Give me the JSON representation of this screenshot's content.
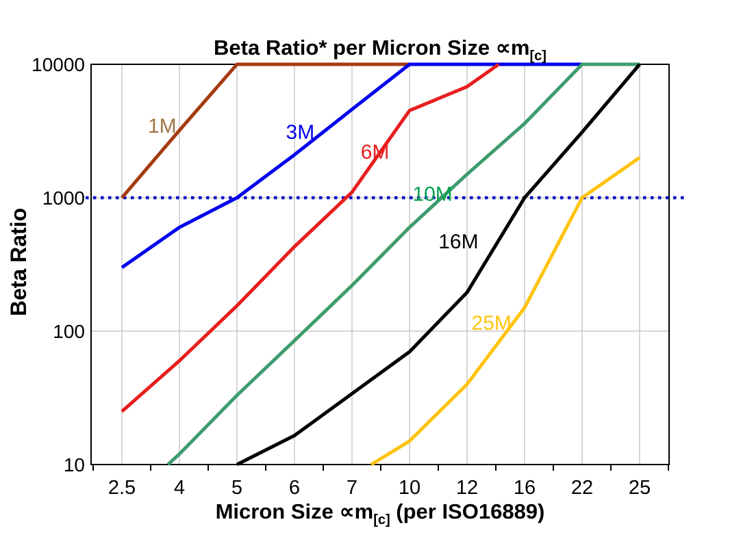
{
  "title": {
    "text": "Beta Ratio* per Micron Size ",
    "symbol": "∝m",
    "subscript": "[c]"
  },
  "x_axis": {
    "title_prefix": "Micron Size ",
    "title_symbol": "∝m",
    "title_subscript": "[c]",
    "title_suffix": " (per ISO16889)",
    "ticks": [
      {
        "label": "2.5",
        "value": 2.5
      },
      {
        "label": "4",
        "value": 4
      },
      {
        "label": "5",
        "value": 5
      },
      {
        "label": "6",
        "value": 6
      },
      {
        "label": "7",
        "value": 7
      },
      {
        "label": "10",
        "value": 10
      },
      {
        "label": "12",
        "value": 12
      },
      {
        "label": "16",
        "value": 16
      },
      {
        "label": "22",
        "value": 22
      },
      {
        "label": "25",
        "value": 25
      }
    ]
  },
  "y_axis": {
    "title": "Beta Ratio",
    "scale": "log",
    "ticks": [
      {
        "label": "10",
        "value": 10
      },
      {
        "label": "100",
        "value": 100
      },
      {
        "label": "1000",
        "value": 1000
      },
      {
        "label": "10000",
        "value": 10000
      }
    ]
  },
  "reference_line": {
    "beta": 1000,
    "color": "#0d0dcc",
    "style": "dotted"
  },
  "colors": {
    "frame": "#000000",
    "gridline": "#c9c9c9",
    "background": "#ffffff"
  },
  "chart_data": {
    "type": "line",
    "title": "Beta Ratio* per Micron Size ∝m[c]",
    "xlabel": "Micron Size ∝m[c] (per ISO16889)",
    "ylabel": "Beta Ratio",
    "x_categories": [
      2.5,
      4,
      5,
      6,
      7,
      10,
      12,
      16,
      22,
      25
    ],
    "y_scale": "log",
    "ylim": [
      10,
      10000
    ],
    "grid": "on",
    "reference_line_beta": 1000,
    "series": [
      {
        "name": "1M",
        "color": "#a53a10",
        "label_color": "#a07346",
        "label_pos": {
          "micron": 3.55,
          "beta": 3450
        },
        "points": [
          [
            2.5,
            1000
          ],
          [
            4,
            3200
          ],
          [
            5,
            10000
          ],
          [
            6,
            10000
          ],
          [
            7,
            10000
          ],
          [
            10,
            10000
          ]
        ]
      },
      {
        "name": "3M",
        "color": "#0000ee",
        "label_color": "#0000ee",
        "label_pos": {
          "micron": 6.1,
          "beta": 3100
        },
        "points": [
          [
            2.5,
            300
          ],
          [
            4,
            600
          ],
          [
            5,
            1000
          ],
          [
            6,
            2100
          ],
          [
            7,
            4600
          ],
          [
            10,
            10000
          ],
          [
            12,
            10000
          ],
          [
            16,
            10000
          ],
          [
            22,
            10000
          ]
        ]
      },
      {
        "name": "6M",
        "color": "#e81e1e",
        "label_color": "#e81e1e",
        "label_pos": {
          "micron": 8.2,
          "beta": 2200
        },
        "points": [
          [
            2.5,
            25
          ],
          [
            4,
            60
          ],
          [
            5,
            155
          ],
          [
            6,
            430
          ],
          [
            7,
            1100
          ],
          [
            10,
            4500
          ],
          [
            12,
            6800
          ],
          [
            14.2,
            10000
          ]
        ]
      },
      {
        "name": "10M",
        "color": "#3e9c6e",
        "label_color": "#00a14d",
        "label_pos": {
          "micron": 10.8,
          "beta": 1070
        },
        "points": [
          [
            3.7,
            10
          ],
          [
            4,
            12
          ],
          [
            5,
            33
          ],
          [
            6,
            85
          ],
          [
            7,
            220
          ],
          [
            10,
            600
          ],
          [
            12,
            1500
          ],
          [
            16,
            3600
          ],
          [
            22,
            10000
          ],
          [
            25,
            10000
          ]
        ]
      },
      {
        "name": "16M",
        "color": "#000000",
        "label_color": "#000000",
        "label_pos": {
          "micron": 11.7,
          "beta": 470
        },
        "points": [
          [
            5,
            10
          ],
          [
            6,
            16.5
          ],
          [
            7,
            34
          ],
          [
            10,
            70
          ],
          [
            12,
            195
          ],
          [
            16,
            1000
          ],
          [
            22,
            3100
          ],
          [
            25,
            10000
          ]
        ]
      },
      {
        "name": "25M",
        "color": "#ffc30f",
        "label_color": "#ffc30f",
        "label_pos": {
          "micron": 13.7,
          "beta": 115
        },
        "points": [
          [
            8,
            10
          ],
          [
            10,
            15
          ],
          [
            12,
            40
          ],
          [
            16,
            150
          ],
          [
            22,
            1000
          ],
          [
            25,
            2000
          ]
        ]
      }
    ]
  }
}
